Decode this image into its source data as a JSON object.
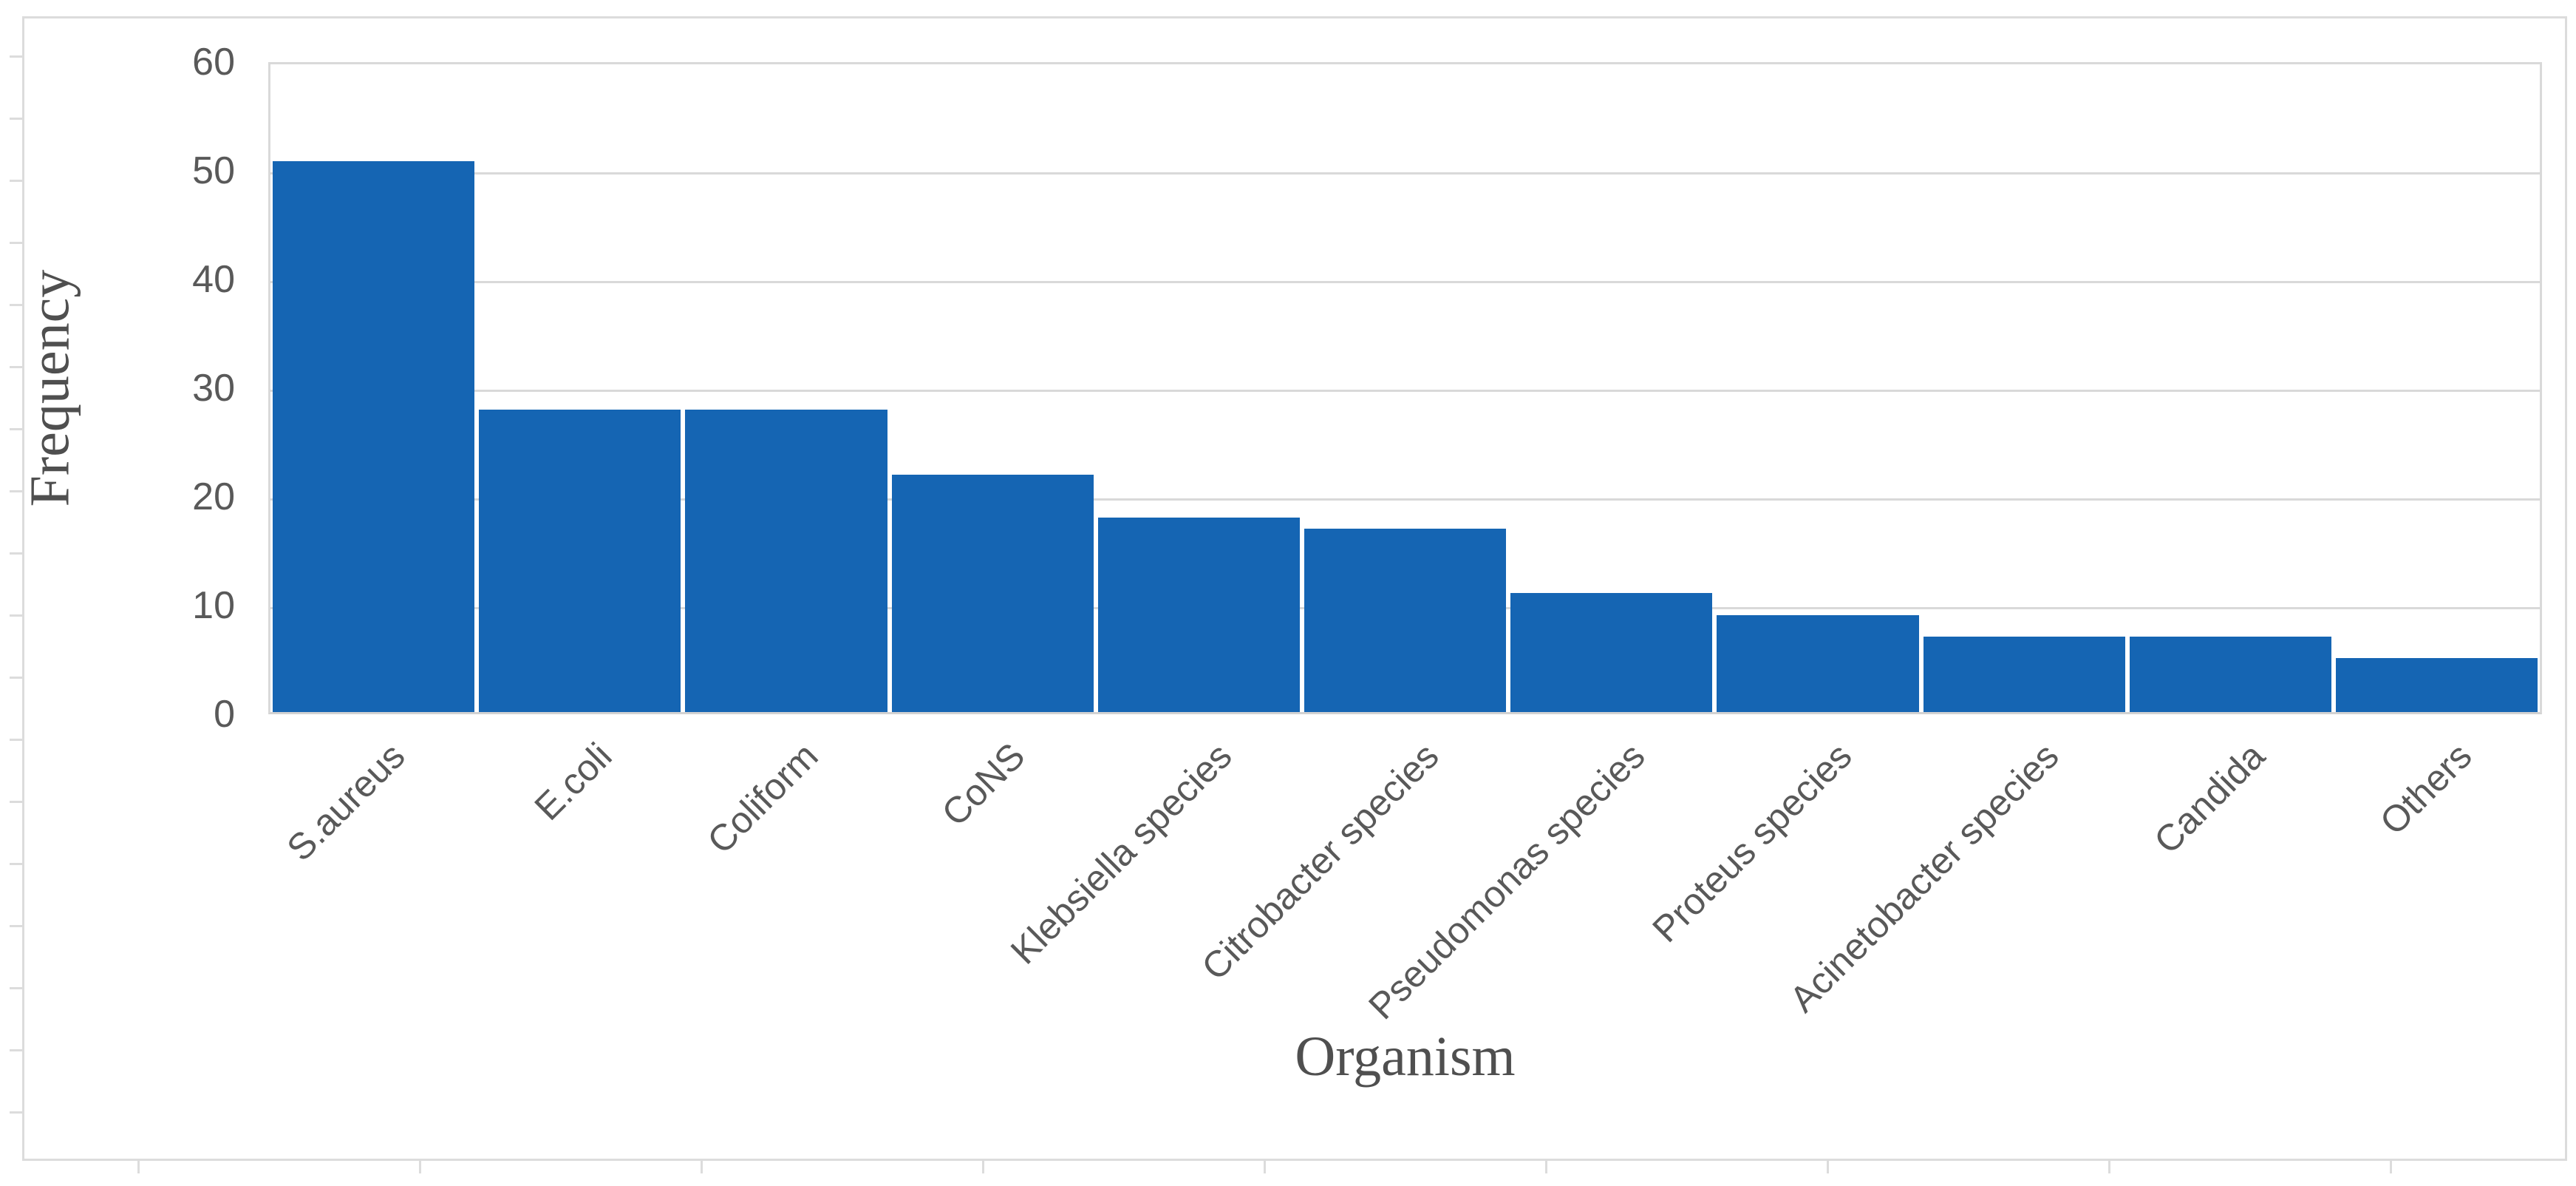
{
  "figure": {
    "background": "#ffffff",
    "border_color": "#dcdcdc"
  },
  "chart_data": {
    "type": "bar",
    "title": "",
    "categories": [
      "S.aureus",
      "E.coli",
      "Coliform",
      "CoNS",
      "Klebsiella species",
      "Citrobacter species",
      "Pseudomonas species",
      "Proteus species",
      "Acinetobacter species",
      "Candida",
      "Others"
    ],
    "values": [
      51,
      28,
      28,
      22,
      18,
      17,
      11,
      9,
      7,
      7,
      5
    ],
    "xlabel": "Organism",
    "ylabel": "Frequency",
    "ylim": [
      0,
      60
    ],
    "ytick_step": 10,
    "ytick_labels": [
      "0",
      "10",
      "20",
      "30",
      "40",
      "50",
      "60"
    ],
    "grid": "horizontal",
    "legend_position": "none",
    "bar_color": "#1565b3",
    "grid_color": "#d9d9d9",
    "tick_label_color": "#595959",
    "axis_title_color": "#4f4f4f"
  }
}
